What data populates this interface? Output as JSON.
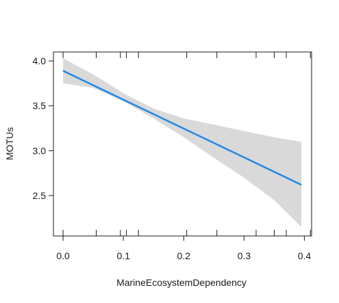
{
  "chart_data": {
    "type": "line",
    "title": "",
    "xlabel": "MarineEcosystemDependency",
    "ylabel": "MOTUs",
    "xlim": [
      -0.016,
      0.412
    ],
    "ylim": [
      2.05,
      4.1
    ],
    "x_ticks": [
      0.0,
      0.1,
      0.2,
      0.3,
      0.4
    ],
    "x_tick_labels": [
      "0.0",
      "0.1",
      "0.2",
      "0.3",
      "0.4"
    ],
    "y_ticks": [
      2.5,
      3.0,
      3.5,
      4.0
    ],
    "y_tick_labels": [
      "2.5",
      "3.0",
      "3.5",
      "4.0"
    ],
    "rug_x": [
      0.0,
      0.055,
      0.095,
      0.105,
      0.125,
      0.205,
      0.255,
      0.32,
      0.35,
      0.37,
      0.41
    ],
    "fit_line": {
      "x": [
        0.0,
        0.395
      ],
      "y": [
        3.89,
        2.62
      ]
    },
    "confidence_band": {
      "x": [
        0.0,
        0.05,
        0.1,
        0.15,
        0.2,
        0.25,
        0.3,
        0.35,
        0.395
      ],
      "upper": [
        4.03,
        3.85,
        3.64,
        3.47,
        3.36,
        3.29,
        3.22,
        3.15,
        3.1
      ],
      "lower": [
        3.75,
        3.7,
        3.55,
        3.36,
        3.15,
        2.92,
        2.7,
        2.45,
        2.15
      ]
    },
    "grid": false,
    "colors": {
      "line": "#1f87e8",
      "band": "#d9d9d9",
      "axis": "#1a1a1a"
    }
  }
}
